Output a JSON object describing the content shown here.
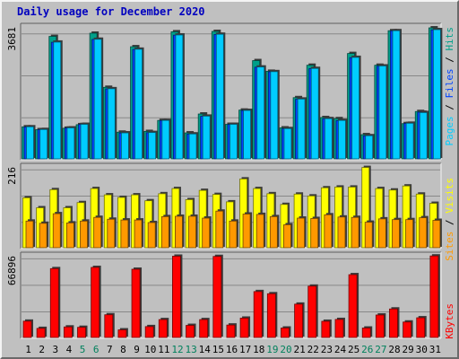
{
  "title": "Daily usage for December 2020",
  "colors": {
    "hits": "#00ccff",
    "files": "#0044ff",
    "pages": "#00a08a",
    "visits": "#ffff00",
    "sites": "#ff9900",
    "kbytes": "#ff0000",
    "weekend_label": "#00805c",
    "weekday_label": "#000000",
    "grid": "#888888",
    "plot_bg": "#c0c0c0",
    "bar_shadow": "#3a3a3a"
  },
  "chart_data": [
    {
      "type": "bar",
      "name": "hits-files-pages",
      "max_label": "3681",
      "ylim": [
        0,
        3681
      ],
      "legend": [
        "Pages",
        "Files",
        "Hits"
      ],
      "categories": [
        "1",
        "2",
        "3",
        "4",
        "5",
        "6",
        "7",
        "8",
        "9",
        "10",
        "11",
        "12",
        "13",
        "14",
        "15",
        "16",
        "17",
        "18",
        "19",
        "20",
        "21",
        "22",
        "23",
        "24",
        "25",
        "26",
        "27",
        "28",
        "29",
        "30",
        "31"
      ],
      "series": [
        {
          "name": "Hits",
          "values": [
            900,
            825,
            3280,
            870,
            970,
            3360,
            1970,
            730,
            3080,
            740,
            1080,
            3480,
            700,
            1200,
            3500,
            970,
            1360,
            2580,
            2450,
            850,
            1680,
            2540,
            1130,
            1080,
            2850,
            650,
            2610,
            3600,
            1000,
            1300,
            3630
          ]
        },
        {
          "name": "Files",
          "values": [
            895,
            820,
            3275,
            865,
            965,
            3355,
            1965,
            725,
            3075,
            735,
            1075,
            3475,
            695,
            1195,
            3495,
            965,
            1355,
            2575,
            2445,
            845,
            1675,
            2535,
            1125,
            1075,
            2845,
            645,
            2605,
            3595,
            995,
            1310,
            3625
          ]
        },
        {
          "name": "Pages",
          "values": [
            900,
            820,
            3440,
            860,
            960,
            3530,
            2010,
            750,
            3150,
            770,
            1080,
            3570,
            730,
            1260,
            3580,
            970,
            1370,
            2760,
            2460,
            870,
            1720,
            2630,
            1160,
            1130,
            2960,
            680,
            2630,
            3600,
            990,
            1330,
            3680
          ]
        }
      ]
    },
    {
      "type": "bar",
      "name": "visits-sites",
      "max_label": "216",
      "ylim": [
        0,
        216
      ],
      "legend": [
        "Sites",
        "Visits"
      ],
      "categories": [
        "1",
        "2",
        "3",
        "4",
        "5",
        "6",
        "7",
        "8",
        "9",
        "10",
        "11",
        "12",
        "13",
        "14",
        "15",
        "16",
        "17",
        "18",
        "19",
        "20",
        "21",
        "22",
        "23",
        "24",
        "25",
        "26",
        "27",
        "28",
        "29",
        "30",
        "31"
      ],
      "series": [
        {
          "name": "Visits",
          "values": [
            135,
            108,
            157,
            108,
            122,
            160,
            143,
            136,
            143,
            127,
            146,
            160,
            130,
            155,
            144,
            124,
            186,
            160,
            146,
            117,
            145,
            140,
            162,
            164,
            164,
            217,
            160,
            156,
            167,
            145,
            120
          ]
        },
        {
          "name": "Sites",
          "values": [
            72,
            66,
            92,
            67,
            72,
            82,
            77,
            75,
            75,
            68,
            84,
            85,
            85,
            80,
            99,
            72,
            91,
            90,
            84,
            62,
            80,
            79,
            89,
            83,
            82,
            69,
            78,
            76,
            76,
            81,
            74
          ]
        }
      ]
    },
    {
      "type": "bar",
      "name": "kbytes",
      "max_label": "66896",
      "ylim": [
        0,
        66896
      ],
      "legend": [
        "KBytes"
      ],
      "categories": [
        "1",
        "2",
        "3",
        "4",
        "5",
        "6",
        "7",
        "8",
        "9",
        "10",
        "11",
        "12",
        "13",
        "14",
        "15",
        "16",
        "17",
        "18",
        "19",
        "20",
        "21",
        "22",
        "23",
        "24",
        "25",
        "26",
        "27",
        "28",
        "29",
        "30",
        "31"
      ],
      "series": [
        {
          "name": "KBytes",
          "values": [
            13500,
            7500,
            57000,
            8700,
            8400,
            58000,
            18800,
            6300,
            56500,
            9000,
            14800,
            67300,
            10000,
            14800,
            67100,
            10300,
            16000,
            38000,
            36200,
            7800,
            27600,
            42500,
            13400,
            14900,
            52000,
            7800,
            18600,
            23600,
            12800,
            16300,
            67500
          ]
        }
      ]
    }
  ],
  "x_labels": [
    {
      "text": "1",
      "weekend": false
    },
    {
      "text": "2",
      "weekend": false
    },
    {
      "text": "3",
      "weekend": false
    },
    {
      "text": "4",
      "weekend": false
    },
    {
      "text": "5",
      "weekend": true
    },
    {
      "text": "6",
      "weekend": true
    },
    {
      "text": "7",
      "weekend": false
    },
    {
      "text": "8",
      "weekend": false
    },
    {
      "text": "9",
      "weekend": false
    },
    {
      "text": "10",
      "weekend": false
    },
    {
      "text": "11",
      "weekend": false
    },
    {
      "text": "12",
      "weekend": true
    },
    {
      "text": "13",
      "weekend": true
    },
    {
      "text": "14",
      "weekend": false
    },
    {
      "text": "15",
      "weekend": false
    },
    {
      "text": "16",
      "weekend": false
    },
    {
      "text": "17",
      "weekend": false
    },
    {
      "text": "18",
      "weekend": false
    },
    {
      "text": "19",
      "weekend": true
    },
    {
      "text": "20",
      "weekend": true
    },
    {
      "text": "21",
      "weekend": false
    },
    {
      "text": "22",
      "weekend": false
    },
    {
      "text": "23",
      "weekend": false
    },
    {
      "text": "24",
      "weekend": false
    },
    {
      "text": "25",
      "weekend": false
    },
    {
      "text": "26",
      "weekend": true
    },
    {
      "text": "27",
      "weekend": true
    },
    {
      "text": "28",
      "weekend": false
    },
    {
      "text": "29",
      "weekend": false
    },
    {
      "text": "30",
      "weekend": false
    },
    {
      "text": "31",
      "weekend": false
    }
  ],
  "separator": " / "
}
